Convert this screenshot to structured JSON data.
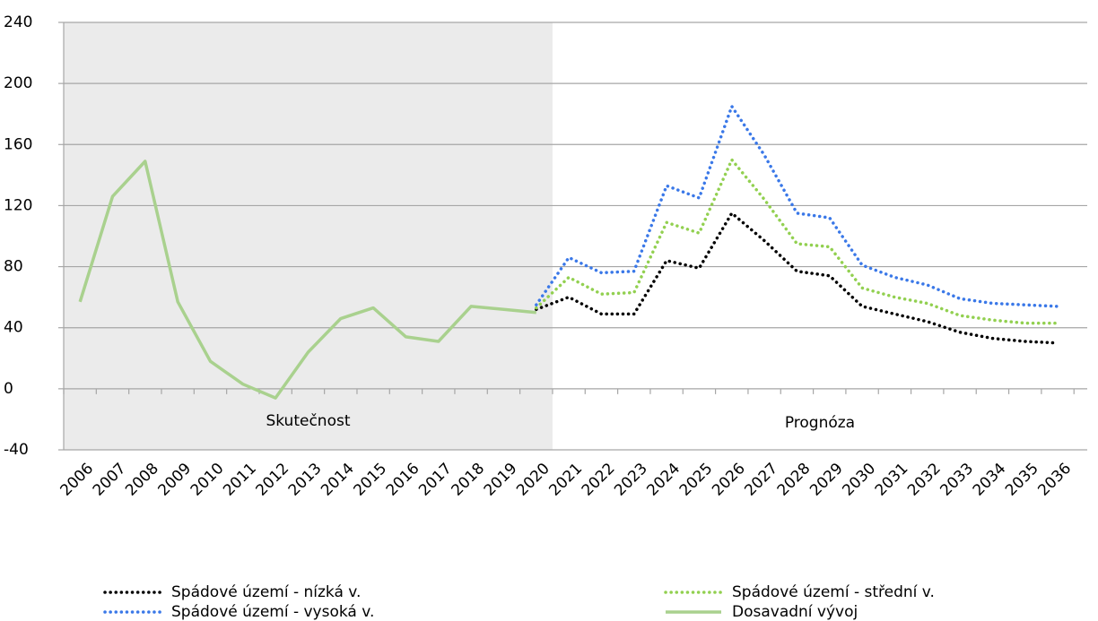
{
  "chart_data": {
    "type": "line",
    "categories": [
      "2006",
      "2007",
      "2008",
      "2009",
      "2010",
      "2011",
      "2012",
      "2013",
      "2014",
      "2015",
      "2016",
      "2017",
      "2018",
      "2019",
      "2020",
      "2021",
      "2022",
      "2023",
      "2024",
      "2025",
      "2026",
      "2027",
      "2028",
      "2029",
      "2030",
      "2031",
      "2032",
      "2033",
      "2034",
      "2035",
      "2036"
    ],
    "series": [
      {
        "name": "Spádové území - nízká v.",
        "color": "#000000",
        "style": "dotted",
        "values": [
          null,
          null,
          null,
          null,
          null,
          null,
          null,
          null,
          null,
          null,
          null,
          null,
          null,
          null,
          52,
          60,
          49,
          49,
          84,
          79,
          115,
          97,
          77,
          74,
          54,
          49,
          44,
          37,
          33,
          31,
          30
        ]
      },
      {
        "name": "Spádové území - střední v.",
        "color": "#92d050",
        "style": "dotted",
        "values": [
          null,
          null,
          null,
          null,
          null,
          null,
          null,
          null,
          null,
          null,
          null,
          null,
          null,
          null,
          53,
          73,
          62,
          63,
          109,
          102,
          150,
          124,
          95,
          93,
          66,
          60,
          56,
          48,
          45,
          43,
          43
        ]
      },
      {
        "name": "Spádové území - vysoká v.",
        "color": "#3a78e8",
        "style": "dotted",
        "values": [
          null,
          null,
          null,
          null,
          null,
          null,
          null,
          null,
          null,
          null,
          null,
          null,
          null,
          null,
          55,
          86,
          76,
          77,
          133,
          125,
          185,
          153,
          115,
          112,
          81,
          73,
          68,
          59,
          56,
          55,
          54
        ]
      },
      {
        "name": "Dosavadní vývoj",
        "color": "#a9d18e",
        "style": "solid",
        "values": [
          57,
          126,
          149,
          57,
          18,
          3,
          -6,
          24,
          46,
          53,
          34,
          31,
          54,
          52,
          50,
          null,
          null,
          null,
          null,
          null,
          null,
          null,
          null,
          null,
          null,
          null,
          null,
          null,
          null,
          null,
          null
        ]
      }
    ],
    "annotations": [
      {
        "text": "Skutečnost"
      },
      {
        "text": "Prognóza"
      }
    ],
    "ylim": [
      -40,
      240
    ],
    "yticks": [
      -40,
      0,
      40,
      80,
      120,
      160,
      200,
      240
    ],
    "grid": true,
    "legend": "bottom"
  }
}
